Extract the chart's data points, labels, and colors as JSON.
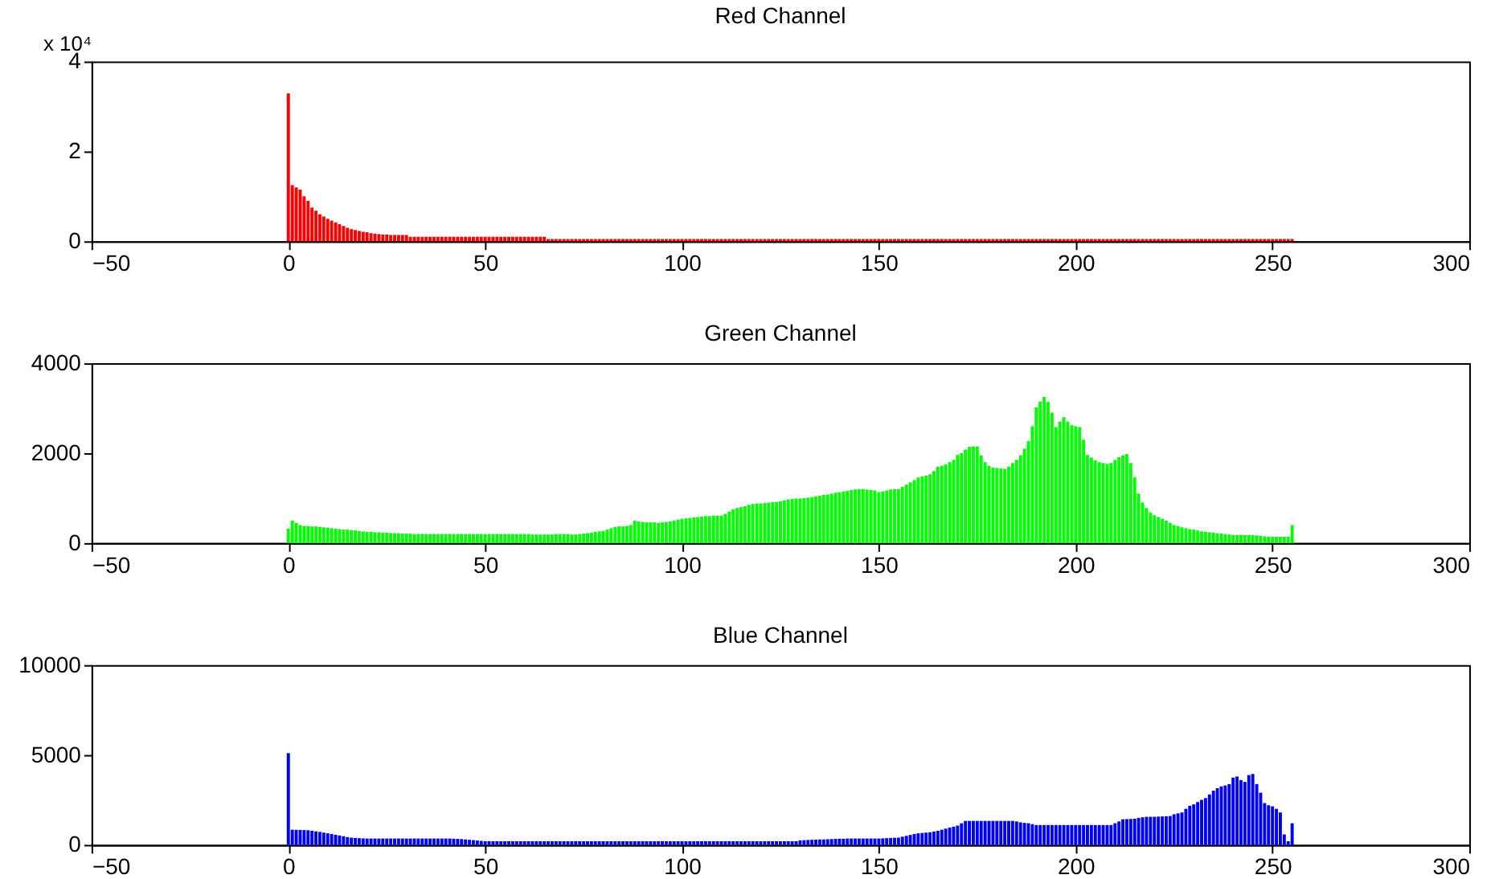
{
  "chart_data": [
    {
      "type": "bar",
      "title": "Red Channel",
      "color": "#ff0000",
      "annotations": [
        "x 10⁴"
      ],
      "xlim": [
        -50,
        300
      ],
      "xticks": [
        -50,
        0,
        50,
        100,
        150,
        200,
        250,
        300
      ],
      "ylim": [
        0,
        4
      ],
      "yticks": [
        0,
        2,
        4
      ],
      "x": [
        0,
        1,
        2,
        3,
        4,
        5,
        6,
        7,
        8,
        9,
        10,
        11,
        12,
        13,
        14,
        15,
        16,
        17,
        18,
        19,
        20,
        21,
        22,
        23,
        24,
        25,
        26,
        27,
        28,
        29,
        30,
        31,
        32,
        33,
        34,
        35,
        36,
        37,
        38,
        39,
        40,
        41,
        42,
        43,
        44,
        45,
        46,
        47,
        48,
        49,
        50,
        51,
        52,
        53,
        54,
        55,
        56,
        57,
        58,
        59,
        60,
        61,
        62,
        63,
        64,
        65,
        66,
        67,
        68,
        69,
        70,
        71,
        72,
        73,
        74,
        75,
        76,
        77,
        78,
        79,
        80,
        81,
        82,
        83,
        84,
        85,
        86,
        87,
        88,
        89,
        90,
        91,
        92,
        93,
        94,
        95,
        96,
        97,
        98,
        99,
        100,
        101,
        102,
        103,
        104,
        105,
        106,
        107,
        108,
        109,
        110,
        111,
        112,
        113,
        114,
        115,
        116,
        117,
        118,
        119,
        120,
        121,
        122,
        123,
        124,
        125,
        126,
        127,
        128,
        129,
        130,
        131,
        132,
        133,
        134,
        135,
        136,
        137,
        138,
        139,
        140,
        141,
        142,
        143,
        144,
        145,
        146,
        147,
        148,
        149,
        150,
        151,
        152,
        153,
        154,
        155,
        156,
        157,
        158,
        159,
        160,
        161,
        162,
        163,
        164,
        165,
        166,
        167,
        168,
        169,
        170,
        171,
        172,
        173,
        174,
        175,
        176,
        177,
        178,
        179,
        180,
        181,
        182,
        183,
        184,
        185,
        186,
        187,
        188,
        189,
        190,
        191,
        192,
        193,
        194,
        195,
        196,
        197,
        198,
        199,
        200,
        201,
        202,
        203,
        204,
        205,
        206,
        207,
        208,
        209,
        210,
        211,
        212,
        213,
        214,
        215,
        216,
        217,
        218,
        219,
        220,
        221,
        222,
        223,
        224,
        225,
        226,
        227,
        228,
        229,
        230,
        231,
        232,
        233,
        234,
        235,
        236,
        237,
        238,
        239,
        240,
        241,
        242,
        243,
        244,
        245,
        246,
        247,
        248,
        249,
        250,
        251,
        252,
        253,
        254,
        255
      ],
      "values": [
        3.29,
        1.25,
        1.2,
        1.15,
        1.0,
        0.9,
        0.75,
        0.68,
        0.6,
        0.55,
        0.5,
        0.46,
        0.42,
        0.38,
        0.34,
        0.3,
        0.27,
        0.25,
        0.23,
        0.21,
        0.2,
        0.18,
        0.17,
        0.16,
        0.15,
        0.15,
        0.14,
        0.14,
        0.14,
        0.14,
        0.14,
        0.1,
        0.1,
        0.1,
        0.1,
        0.1,
        0.1,
        0.1,
        0.1,
        0.1,
        0.1,
        0.1,
        0.1,
        0.1,
        0.1,
        0.1,
        0.1,
        0.1,
        0.1,
        0.1,
        0.1,
        0.1,
        0.1,
        0.1,
        0.1,
        0.1,
        0.1,
        0.1,
        0.1,
        0.1,
        0.1,
        0.1,
        0.1,
        0.1,
        0.1,
        0.1,
        0.05,
        0.05,
        0.05,
        0.05,
        0.05,
        0.05,
        0.05,
        0.05,
        0.05,
        0.05,
        0.05,
        0.05,
        0.05,
        0.05,
        0.05,
        0.05,
        0.05,
        0.05,
        0.05,
        0.05,
        0.05,
        0.05,
        0.05,
        0.05,
        0.05,
        0.05,
        0.05,
        0.05,
        0.05,
        0.05,
        0.05,
        0.05,
        0.05,
        0.05,
        0.05,
        0.05,
        0.05,
        0.05,
        0.05,
        0.05,
        0.05,
        0.05,
        0.05,
        0.05,
        0.05,
        0.05,
        0.05,
        0.05,
        0.05,
        0.05,
        0.05,
        0.05,
        0.05,
        0.05,
        0.05,
        0.05,
        0.05,
        0.05,
        0.05,
        0.05,
        0.05,
        0.05,
        0.05,
        0.05,
        0.05,
        0.05,
        0.05,
        0.05,
        0.05,
        0.05,
        0.05,
        0.05,
        0.05,
        0.05,
        0.05,
        0.05,
        0.05,
        0.05,
        0.05,
        0.05,
        0.05,
        0.05,
        0.05,
        0.05,
        0.05,
        0.05,
        0.05,
        0.05,
        0.05,
        0.05,
        0.05,
        0.05,
        0.05,
        0.05,
        0.05,
        0.05,
        0.05,
        0.05,
        0.05,
        0.05,
        0.05,
        0.05,
        0.05,
        0.05,
        0.05,
        0.05,
        0.05,
        0.05,
        0.05,
        0.05,
        0.05,
        0.05,
        0.05,
        0.05,
        0.05,
        0.05,
        0.05,
        0.05,
        0.05,
        0.05,
        0.05,
        0.05,
        0.05,
        0.05,
        0.05,
        0.05,
        0.05,
        0.05,
        0.05,
        0.05,
        0.05,
        0.05,
        0.05,
        0.05,
        0.05,
        0.05,
        0.05,
        0.05,
        0.05,
        0.05,
        0.05,
        0.05,
        0.05,
        0.05,
        0.05,
        0.05,
        0.05,
        0.05,
        0.05,
        0.05,
        0.05,
        0.05,
        0.05,
        0.05,
        0.05,
        0.05,
        0.05,
        0.05,
        0.05,
        0.05,
        0.05,
        0.05,
        0.05,
        0.05,
        0.05,
        0.05,
        0.05,
        0.05,
        0.05,
        0.05,
        0.05,
        0.05,
        0.05,
        0.05,
        0.05,
        0.05,
        0.05,
        0.05,
        0.05,
        0.05,
        0.05,
        0.05,
        0.05,
        0.05,
        0.05,
        0.05,
        0.05,
        0.05,
        0.05,
        0.05
      ]
    },
    {
      "type": "bar",
      "title": "Green Channel",
      "color": "#00ff00",
      "xlim": [
        -50,
        300
      ],
      "xticks": [
        -50,
        0,
        50,
        100,
        150,
        200,
        250,
        300
      ],
      "ylim": [
        0,
        4000
      ],
      "yticks": [
        0,
        2000,
        4000
      ],
      "x": [
        0,
        1,
        2,
        3,
        4,
        5,
        6,
        7,
        8,
        9,
        10,
        11,
        12,
        13,
        14,
        15,
        16,
        17,
        18,
        19,
        20,
        21,
        22,
        23,
        24,
        25,
        26,
        27,
        28,
        29,
        30,
        31,
        32,
        33,
        34,
        35,
        36,
        37,
        38,
        39,
        40,
        41,
        42,
        43,
        44,
        45,
        46,
        47,
        48,
        49,
        50,
        51,
        52,
        53,
        54,
        55,
        56,
        57,
        58,
        59,
        60,
        61,
        62,
        63,
        64,
        65,
        66,
        67,
        68,
        69,
        70,
        71,
        72,
        73,
        74,
        75,
        76,
        77,
        78,
        79,
        80,
        81,
        82,
        83,
        84,
        85,
        86,
        87,
        88,
        89,
        90,
        91,
        92,
        93,
        94,
        95,
        96,
        97,
        98,
        99,
        100,
        101,
        102,
        103,
        104,
        105,
        106,
        107,
        108,
        109,
        110,
        111,
        112,
        113,
        114,
        115,
        116,
        117,
        118,
        119,
        120,
        121,
        122,
        123,
        124,
        125,
        126,
        127,
        128,
        129,
        130,
        131,
        132,
        133,
        134,
        135,
        136,
        137,
        138,
        139,
        140,
        141,
        142,
        143,
        144,
        145,
        146,
        147,
        148,
        149,
        150,
        151,
        152,
        153,
        154,
        155,
        156,
        157,
        158,
        159,
        160,
        161,
        162,
        163,
        164,
        165,
        166,
        167,
        168,
        169,
        170,
        171,
        172,
        173,
        174,
        175,
        176,
        177,
        178,
        179,
        180,
        181,
        182,
        183,
        184,
        185,
        186,
        187,
        188,
        189,
        190,
        191,
        192,
        193,
        194,
        195,
        196,
        197,
        198,
        199,
        200,
        201,
        202,
        203,
        204,
        205,
        206,
        207,
        208,
        209,
        210,
        211,
        212,
        213,
        214,
        215,
        216,
        217,
        218,
        219,
        220,
        221,
        222,
        223,
        224,
        225,
        226,
        227,
        228,
        229,
        230,
        231,
        232,
        233,
        234,
        235,
        236,
        237,
        238,
        239,
        240,
        241,
        242,
        243,
        244,
        245,
        246,
        247,
        248,
        249,
        250,
        251,
        252,
        253,
        254,
        255
      ],
      "values": [
        320,
        500,
        450,
        400,
        380,
        380,
        370,
        370,
        360,
        350,
        340,
        330,
        320,
        310,
        300,
        300,
        290,
        280,
        270,
        260,
        250,
        250,
        240,
        240,
        230,
        230,
        220,
        220,
        220,
        210,
        210,
        210,
        200,
        200,
        200,
        200,
        200,
        200,
        200,
        200,
        200,
        200,
        200,
        200,
        200,
        200,
        200,
        200,
        200,
        200,
        200,
        200,
        200,
        200,
        200,
        200,
        200,
        200,
        200,
        200,
        200,
        200,
        190,
        190,
        190,
        190,
        190,
        190,
        200,
        200,
        200,
        200,
        190,
        190,
        200,
        210,
        220,
        230,
        250,
        260,
        270,
        300,
        330,
        360,
        370,
        370,
        380,
        400,
        500,
        480,
        470,
        460,
        460,
        460,
        450,
        460,
        470,
        480,
        500,
        520,
        540,
        550,
        560,
        570,
        580,
        590,
        600,
        600,
        610,
        610,
        610,
        650,
        700,
        750,
        780,
        800,
        820,
        850,
        870,
        880,
        880,
        890,
        900,
        910,
        910,
        930,
        950,
        970,
        980,
        990,
        990,
        1000,
        1010,
        1020,
        1040,
        1050,
        1070,
        1080,
        1100,
        1120,
        1130,
        1150,
        1160,
        1180,
        1190,
        1200,
        1200,
        1190,
        1180,
        1170,
        1130,
        1150,
        1170,
        1190,
        1200,
        1200,
        1250,
        1300,
        1350,
        1400,
        1460,
        1480,
        1500,
        1530,
        1600,
        1700,
        1720,
        1750,
        1800,
        1850,
        1960,
        2000,
        2080,
        2140,
        2150,
        2150,
        1950,
        1800,
        1720,
        1680,
        1670,
        1660,
        1650,
        1700,
        1780,
        1850,
        1950,
        2100,
        2270,
        2600,
        3020,
        3150,
        3250,
        3140,
        2900,
        2580,
        2700,
        2800,
        2700,
        2620,
        2600,
        2580,
        2300,
        1960,
        1900,
        1840,
        1800,
        1780,
        1760,
        1780,
        1850,
        1910,
        1950,
        1980,
        1780,
        1460,
        1100,
        900,
        780,
        680,
        620,
        580,
        540,
        500,
        450,
        400,
        380,
        350,
        330,
        310,
        300,
        280,
        260,
        250,
        240,
        230,
        220,
        210,
        200,
        190,
        180,
        180,
        180,
        180,
        180,
        180,
        170,
        160,
        150,
        140,
        140,
        140,
        140,
        140,
        140,
        400
      ]
    },
    {
      "type": "bar",
      "title": "Blue Channel",
      "color": "#0000ff",
      "xlim": [
        -50,
        300
      ],
      "xticks": [
        -50,
        0,
        50,
        100,
        150,
        200,
        250,
        300
      ],
      "ylim": [
        0,
        10000
      ],
      "yticks": [
        0,
        5000,
        10000
      ],
      "x": [
        0,
        1,
        2,
        3,
        4,
        5,
        6,
        7,
        8,
        9,
        10,
        11,
        12,
        13,
        14,
        15,
        16,
        17,
        18,
        19,
        20,
        21,
        22,
        23,
        24,
        25,
        26,
        27,
        28,
        29,
        30,
        31,
        32,
        33,
        34,
        35,
        36,
        37,
        38,
        39,
        40,
        41,
        42,
        43,
        44,
        45,
        46,
        47,
        48,
        49,
        50,
        51,
        52,
        53,
        54,
        55,
        56,
        57,
        58,
        59,
        60,
        61,
        62,
        63,
        64,
        65,
        66,
        67,
        68,
        69,
        70,
        71,
        72,
        73,
        74,
        75,
        76,
        77,
        78,
        79,
        80,
        81,
        82,
        83,
        84,
        85,
        86,
        87,
        88,
        89,
        90,
        91,
        92,
        93,
        94,
        95,
        96,
        97,
        98,
        99,
        100,
        101,
        102,
        103,
        104,
        105,
        106,
        107,
        108,
        109,
        110,
        111,
        112,
        113,
        114,
        115,
        116,
        117,
        118,
        119,
        120,
        121,
        122,
        123,
        124,
        125,
        126,
        127,
        128,
        129,
        130,
        131,
        132,
        133,
        134,
        135,
        136,
        137,
        138,
        139,
        140,
        141,
        142,
        143,
        144,
        145,
        146,
        147,
        148,
        149,
        150,
        151,
        152,
        153,
        154,
        155,
        156,
        157,
        158,
        159,
        160,
        161,
        162,
        163,
        164,
        165,
        166,
        167,
        168,
        169,
        170,
        171,
        172,
        173,
        174,
        175,
        176,
        177,
        178,
        179,
        180,
        181,
        182,
        183,
        184,
        185,
        186,
        187,
        188,
        189,
        190,
        191,
        192,
        193,
        194,
        195,
        196,
        197,
        198,
        199,
        200,
        201,
        202,
        203,
        204,
        205,
        206,
        207,
        208,
        209,
        210,
        211,
        212,
        213,
        214,
        215,
        216,
        217,
        218,
        219,
        220,
        221,
        222,
        223,
        224,
        225,
        226,
        227,
        228,
        229,
        230,
        231,
        232,
        233,
        234,
        235,
        236,
        237,
        238,
        239,
        240,
        241,
        242,
        243,
        244,
        245,
        246,
        247,
        248,
        249,
        250,
        251,
        252,
        253,
        254,
        255
      ],
      "values": [
        5100,
        840,
        840,
        830,
        820,
        810,
        780,
        750,
        720,
        680,
        640,
        600,
        560,
        520,
        480,
        430,
        400,
        380,
        370,
        360,
        350,
        350,
        350,
        350,
        350,
        350,
        350,
        350,
        350,
        350,
        350,
        350,
        350,
        350,
        350,
        350,
        350,
        350,
        350,
        350,
        350,
        350,
        340,
        330,
        320,
        300,
        280,
        260,
        240,
        220,
        200,
        200,
        200,
        200,
        200,
        200,
        200,
        200,
        200,
        200,
        200,
        200,
        200,
        200,
        200,
        200,
        200,
        200,
        200,
        200,
        200,
        200,
        200,
        200,
        200,
        200,
        200,
        200,
        200,
        200,
        200,
        200,
        200,
        200,
        200,
        200,
        200,
        200,
        200,
        200,
        200,
        200,
        200,
        200,
        200,
        200,
        200,
        200,
        200,
        200,
        200,
        200,
        200,
        200,
        200,
        200,
        200,
        200,
        200,
        200,
        200,
        200,
        200,
        200,
        200,
        200,
        200,
        200,
        200,
        200,
        200,
        200,
        200,
        200,
        200,
        200,
        200,
        200,
        200,
        200,
        250,
        260,
        270,
        280,
        290,
        300,
        300,
        310,
        320,
        330,
        340,
        340,
        350,
        350,
        350,
        350,
        350,
        350,
        350,
        350,
        350,
        360,
        370,
        380,
        390,
        400,
        450,
        500,
        550,
        600,
        640,
        660,
        680,
        700,
        740,
        780,
        840,
        900,
        960,
        1010,
        1070,
        1200,
        1330,
        1330,
        1330,
        1330,
        1330,
        1330,
        1330,
        1330,
        1330,
        1330,
        1330,
        1330,
        1330,
        1300,
        1250,
        1220,
        1200,
        1150,
        1100,
        1100,
        1100,
        1100,
        1100,
        1100,
        1100,
        1100,
        1100,
        1100,
        1100,
        1100,
        1100,
        1100,
        1100,
        1100,
        1100,
        1100,
        1100,
        1100,
        1200,
        1300,
        1420,
        1430,
        1440,
        1450,
        1500,
        1530,
        1560,
        1560,
        1560,
        1570,
        1580,
        1590,
        1600,
        1700,
        1750,
        1800,
        2000,
        2170,
        2250,
        2380,
        2500,
        2600,
        2800,
        3010,
        3150,
        3250,
        3300,
        3380,
        3740,
        3800,
        3600,
        3500,
        3880,
        3940,
        3380,
        2900,
        2320,
        2200,
        2140,
        2000,
        1800,
        580,
        200,
        1200
      ]
    }
  ]
}
